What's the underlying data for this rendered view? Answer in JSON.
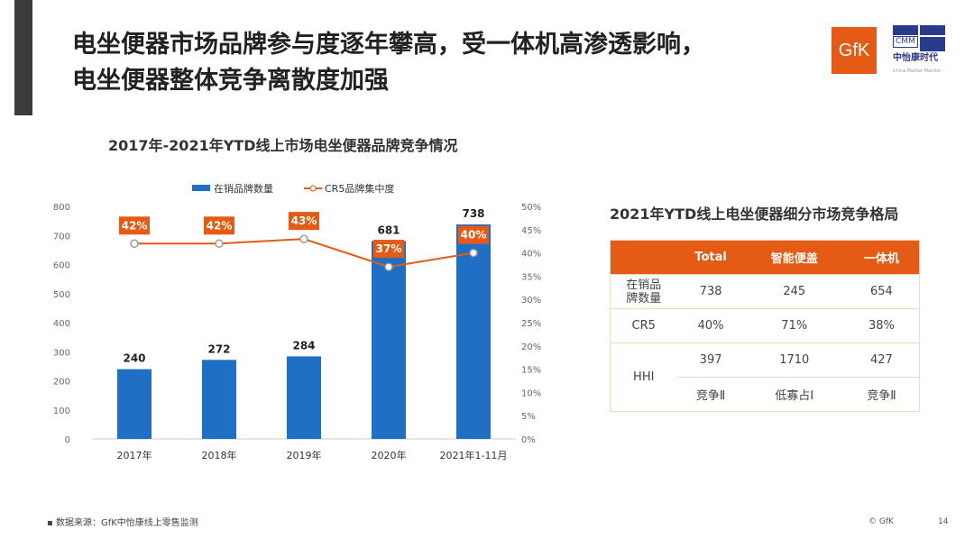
{
  "title_lines": [
    "电坐便器市场品牌参与度逐年攀高，受一体机高渗透影响，",
    "电坐便器整体竞争离散度加强"
  ],
  "logos": {
    "gfk": "GfK",
    "cmm": "CMM",
    "cmm_cn": "中怡康时代",
    "cmm_en": "China Market Monitor"
  },
  "chart_data": {
    "type": "bar+line",
    "title": "2017年-2021年YTD线上市场电坐便器品牌竞争情况",
    "categories": [
      "2017年",
      "2018年",
      "2019年",
      "2020年",
      "2021年1-11月"
    ],
    "series": [
      {
        "name": "在销品牌数量",
        "type": "bar",
        "axis": "left",
        "values": [
          240,
          272,
          284,
          681,
          738
        ],
        "labels": [
          "240",
          "272",
          "284",
          "681",
          "738"
        ],
        "color": "#1f6fc5"
      },
      {
        "name": "CR5品牌集中度",
        "type": "line",
        "axis": "right",
        "values": [
          42,
          42,
          43,
          37,
          40
        ],
        "labels": [
          "42%",
          "42%",
          "43%",
          "37%",
          "40%"
        ],
        "color": "#e55a14"
      }
    ],
    "ylim": [
      0,
      800
    ],
    "yticks": [
      "0",
      "100",
      "200",
      "300",
      "400",
      "500",
      "600",
      "700",
      "800"
    ],
    "y2lim": [
      0,
      50
    ],
    "y2ticks": [
      "0%",
      "5%",
      "10%",
      "15%",
      "20%",
      "25%",
      "30%",
      "35%",
      "40%",
      "45%",
      "50%"
    ],
    "legend": "top"
  },
  "table": {
    "title": "2021年YTD线上电坐便器细分市场竞争格局",
    "headers": [
      "",
      "Total",
      "智能便盖",
      "一体机"
    ],
    "rows": [
      {
        "label": "在销品牌数量",
        "values": [
          "738",
          "245",
          "654"
        ]
      },
      {
        "label": "CR5",
        "values": [
          "40%",
          "71%",
          "38%"
        ]
      },
      {
        "label": "HHI",
        "values": [
          "397",
          "1710",
          "427"
        ],
        "sub": [
          "竞争Ⅱ",
          "低寡占Ⅰ",
          "竞争Ⅱ"
        ]
      }
    ]
  },
  "footer": {
    "source": "数据来源：GfK中怡康线上零售监测",
    "copyright": "© GfK",
    "page": "14"
  }
}
